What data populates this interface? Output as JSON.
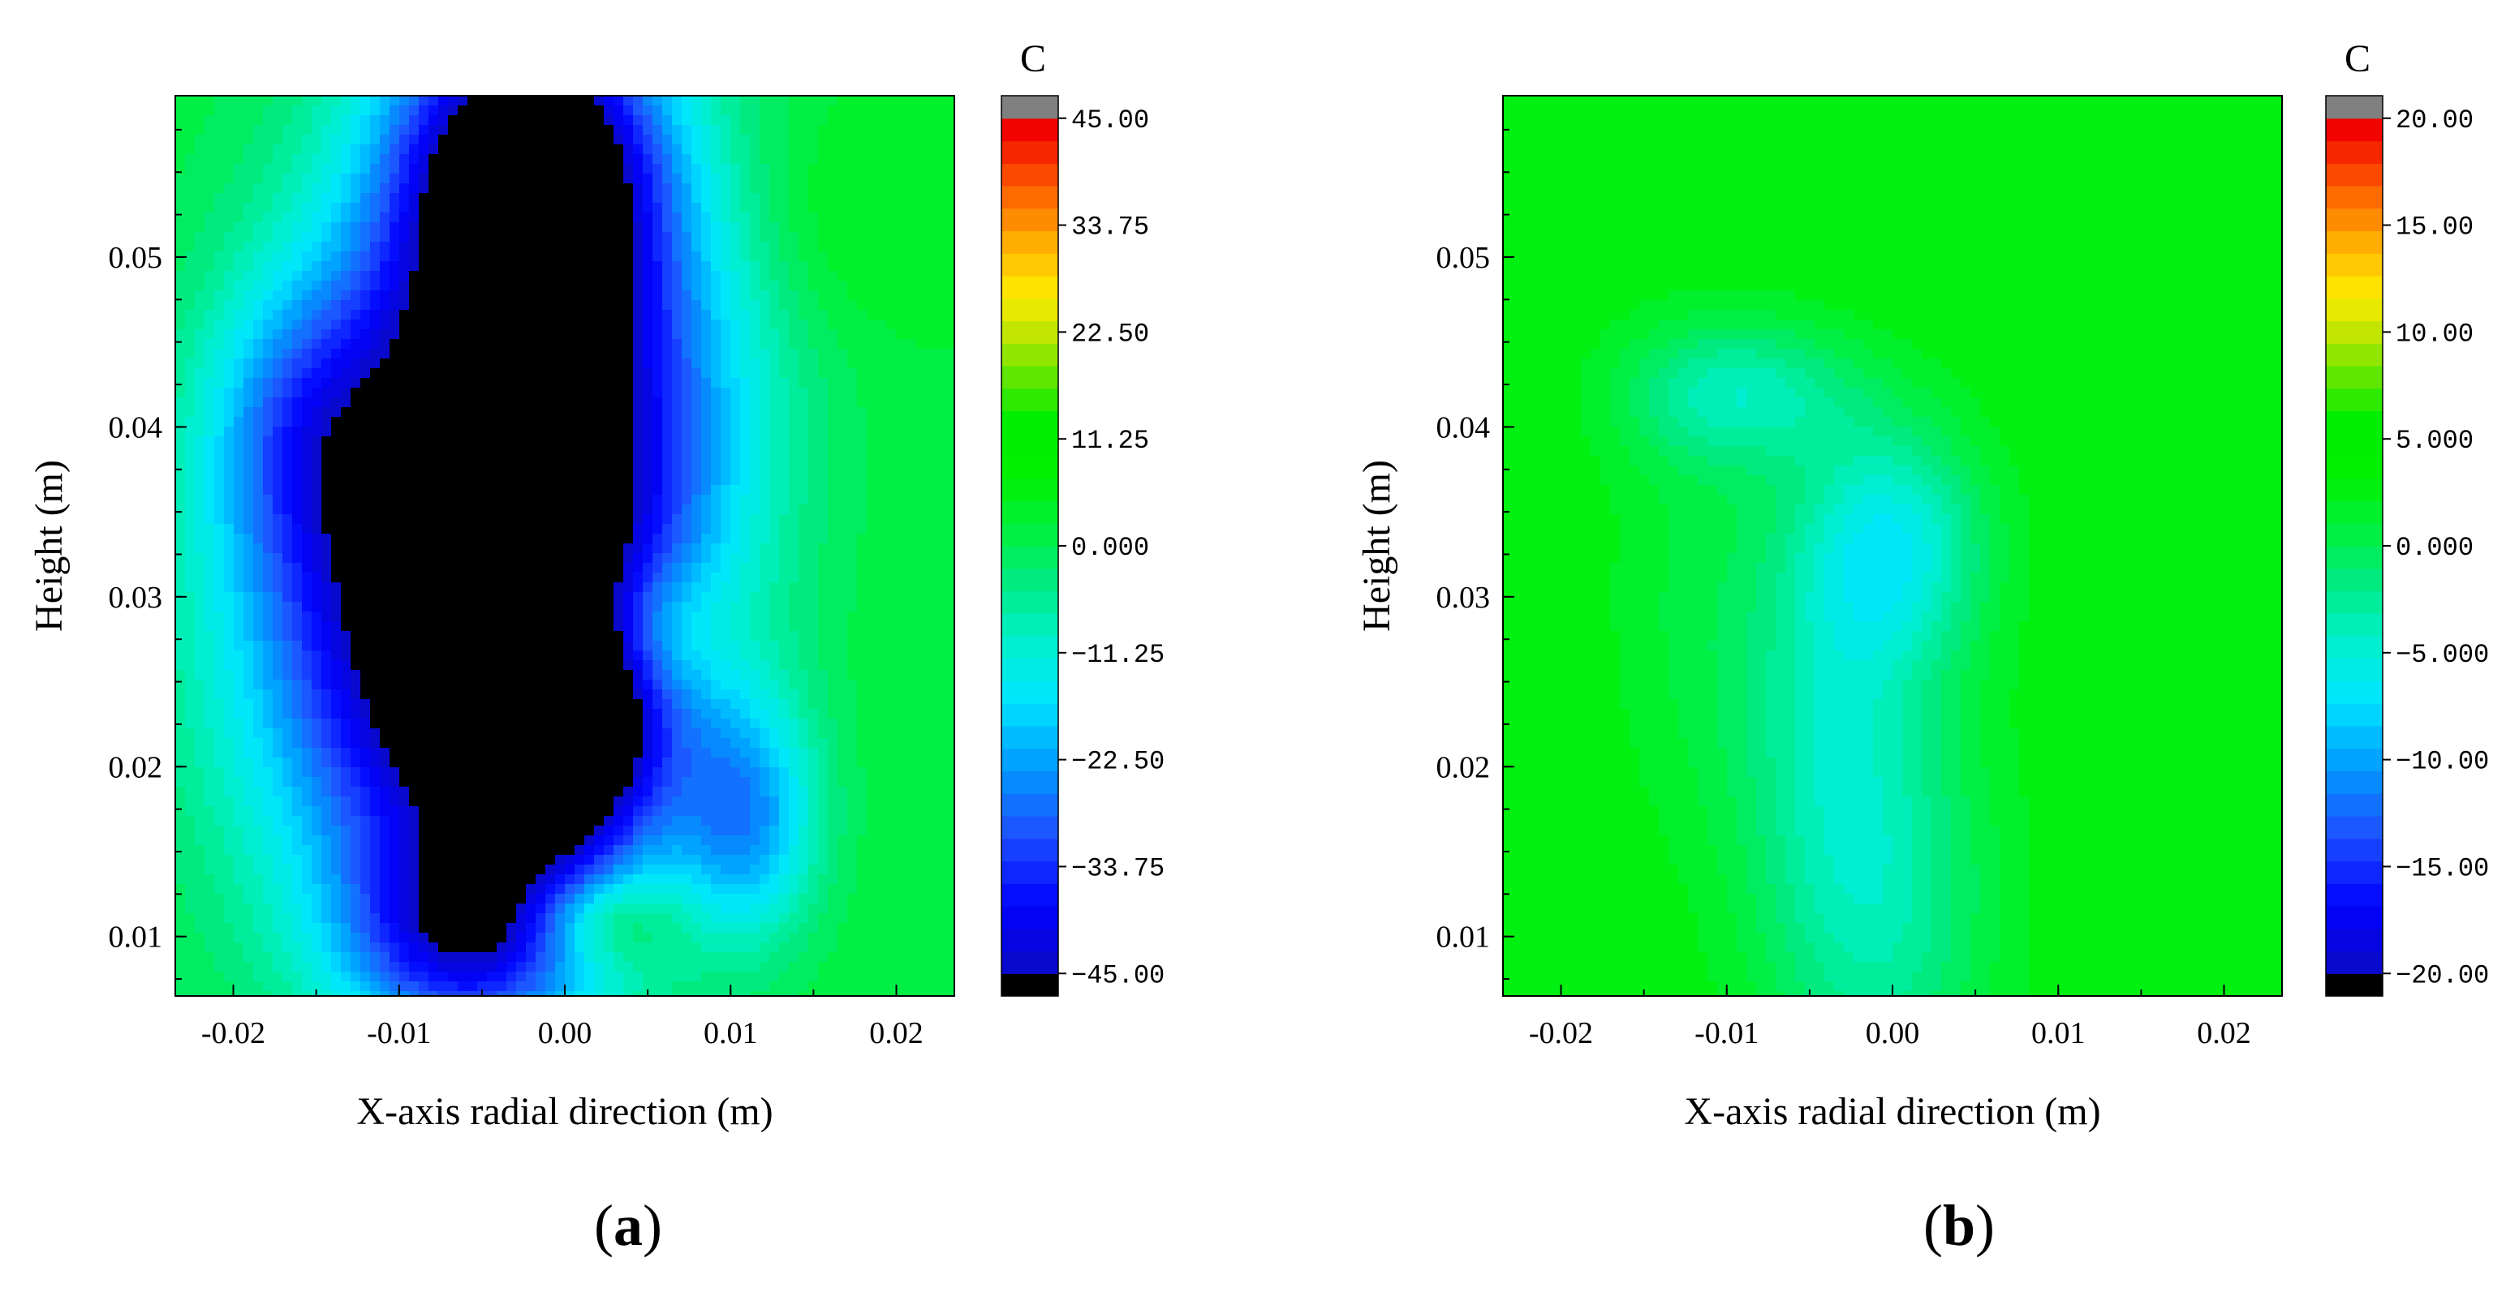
{
  "chart_data": [
    {
      "type": "heatmap",
      "panel_label": "a",
      "xlabel": "X-axis radial direction (m)",
      "ylabel": "Height (m)",
      "xlim": [
        -0.0235,
        0.0235
      ],
      "ylim": [
        0.0065,
        0.0595
      ],
      "x_ticks": [
        -0.02,
        -0.01,
        0.0,
        0.01,
        0.02
      ],
      "x_tick_labels": [
        "-0.02",
        "-0.01",
        "0.00",
        "0.01",
        "0.02"
      ],
      "y_ticks": [
        0.01,
        0.02,
        0.03,
        0.04,
        0.05
      ],
      "y_tick_labels": [
        "0.01",
        "0.02",
        "0.03",
        "0.04",
        "0.05"
      ],
      "colorbar": {
        "title": "C",
        "min": -45,
        "max": 45,
        "tick_values": [
          45,
          33.75,
          22.5,
          11.25,
          0,
          -11.25,
          -22.5,
          -33.75,
          -45
        ],
        "tick_labels": [
          "45.00",
          "33.75",
          "22.50",
          "11.25",
          "0.000",
          "−11.25",
          "−22.50",
          "−33.75",
          "−45.00"
        ]
      },
      "background_value": 2,
      "features": [
        {
          "x": -0.003,
          "y": 0.04,
          "sx": 0.007,
          "sy": 0.018,
          "a": -38
        },
        {
          "x": -0.006,
          "y": 0.028,
          "sx": 0.008,
          "sy": 0.012,
          "a": -24
        },
        {
          "x": -0.01,
          "y": 0.03,
          "sx": 0.009,
          "sy": 0.014,
          "a": -18
        },
        {
          "x": -0.002,
          "y": 0.055,
          "sx": 0.005,
          "sy": 0.006,
          "a": -40
        },
        {
          "x": 0.0,
          "y": 0.022,
          "sx": 0.004,
          "sy": 0.005,
          "a": -34
        },
        {
          "x": 0.011,
          "y": 0.017,
          "sx": 0.003,
          "sy": 0.005,
          "a": -22
        },
        {
          "x": -0.006,
          "y": 0.01,
          "sx": 0.005,
          "sy": 0.004,
          "a": -26
        },
        {
          "x": 0.006,
          "y": 0.042,
          "sx": 0.006,
          "sy": 0.01,
          "a": -12
        },
        {
          "x": -0.016,
          "y": 0.04,
          "sx": 0.004,
          "sy": 0.006,
          "a": -14
        },
        {
          "x": 0.005,
          "y": 0.028,
          "sx": 0.003,
          "sy": 0.003,
          "a": 12
        },
        {
          "x": -0.006,
          "y": 0.038,
          "sx": 0.0025,
          "sy": 0.0025,
          "a": 14
        },
        {
          "x": 0.002,
          "y": 0.011,
          "sx": 0.003,
          "sy": 0.002,
          "a": 14
        },
        {
          "x": 0.016,
          "y": 0.052,
          "sx": 0.005,
          "sy": 0.005,
          "a": 4
        }
      ]
    },
    {
      "type": "heatmap",
      "panel_label": "b",
      "xlabel": "X-axis radial direction (m)",
      "ylabel": "Height (m)",
      "xlim": [
        -0.0235,
        0.0235
      ],
      "ylim": [
        0.0065,
        0.0595
      ],
      "x_ticks": [
        -0.02,
        -0.01,
        0.0,
        0.01,
        0.02
      ],
      "x_tick_labels": [
        "-0.02",
        "-0.01",
        "0.00",
        "0.01",
        "0.02"
      ],
      "y_ticks": [
        0.01,
        0.02,
        0.03,
        0.04,
        0.05
      ],
      "y_tick_labels": [
        "0.01",
        "0.02",
        "0.03",
        "0.04",
        "0.05"
      ],
      "colorbar": {
        "title": "C",
        "min": -20,
        "max": 20,
        "tick_values": [
          20,
          15,
          10,
          5,
          0,
          -5,
          -10,
          -15,
          -20
        ],
        "tick_labels": [
          "20.00",
          "15.00",
          "10.00",
          "5.000",
          "0.000",
          "−5.000",
          "−10.00",
          "−15.00",
          "−20.00"
        ]
      },
      "background_value": 3,
      "features": [
        {
          "x": 0.0,
          "y": 0.033,
          "sx": 0.004,
          "sy": 0.005,
          "a": -8
        },
        {
          "x": -0.009,
          "y": 0.042,
          "sx": 0.005,
          "sy": 0.003,
          "a": -6
        },
        {
          "x": -0.001,
          "y": 0.012,
          "sx": 0.005,
          "sy": 0.009,
          "a": -6
        },
        {
          "x": -0.004,
          "y": 0.024,
          "sx": 0.004,
          "sy": 0.008,
          "a": -4
        },
        {
          "x": -0.012,
          "y": 0.03,
          "sx": 0.004,
          "sy": 0.01,
          "a": -2
        }
      ]
    }
  ]
}
